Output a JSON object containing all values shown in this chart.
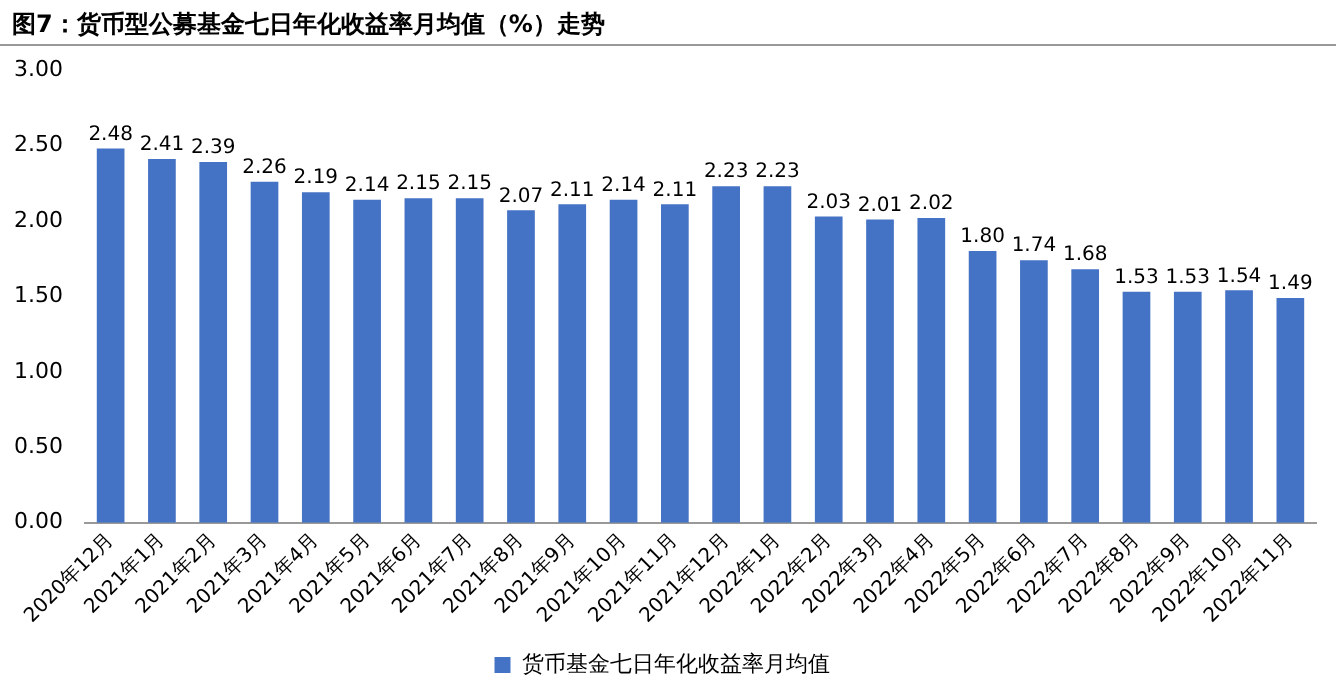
{
  "chart_data": {
    "type": "bar",
    "title": "图7：货币型公募基金七日年化收益率月均值（%）走势",
    "categories": [
      "2020年12月",
      "2021年1月",
      "2021年2月",
      "2021年3月",
      "2021年4月",
      "2021年5月",
      "2021年6月",
      "2021年7月",
      "2021年8月",
      "2021年9月",
      "2021年10月",
      "2021年11月",
      "2021年12月",
      "2022年1月",
      "2022年2月",
      "2022年3月",
      "2022年4月",
      "2022年5月",
      "2022年6月",
      "2022年7月",
      "2022年8月",
      "2022年9月",
      "2022年10月",
      "2022年11月"
    ],
    "series": [
      {
        "name": "货币基金七日年化收益率月均值",
        "color": "#4472c4",
        "values": [
          2.48,
          2.41,
          2.39,
          2.26,
          2.19,
          2.14,
          2.15,
          2.15,
          2.07,
          2.11,
          2.14,
          2.11,
          2.23,
          2.23,
          2.03,
          2.01,
          2.02,
          1.8,
          1.74,
          1.68,
          1.53,
          1.53,
          1.54,
          1.49
        ]
      }
    ],
    "value_labels": [
      "2.48",
      "2.41",
      "2.39",
      "2.26",
      "2.19",
      "2.14",
      "2.15",
      "2.15",
      "2.07",
      "2.11",
      "2.14",
      "2.11",
      "2.23",
      "2.23",
      "2.03",
      "2.01",
      "2.02",
      "1.80",
      "1.74",
      "1.68",
      "1.53",
      "1.53",
      "1.54",
      "1.49"
    ],
    "ylim": [
      0,
      3
    ],
    "yticks": [
      {
        "value": 0,
        "label": "0.00"
      },
      {
        "value": 0.5,
        "label": "0.50"
      },
      {
        "value": 1,
        "label": "1.00"
      },
      {
        "value": 1.5,
        "label": "1.50"
      },
      {
        "value": 2,
        "label": "2.00"
      },
      {
        "value": 2.5,
        "label": "2.50"
      },
      {
        "value": 3,
        "label": "3.00"
      }
    ],
    "grid": false,
    "legend": "bottom"
  }
}
